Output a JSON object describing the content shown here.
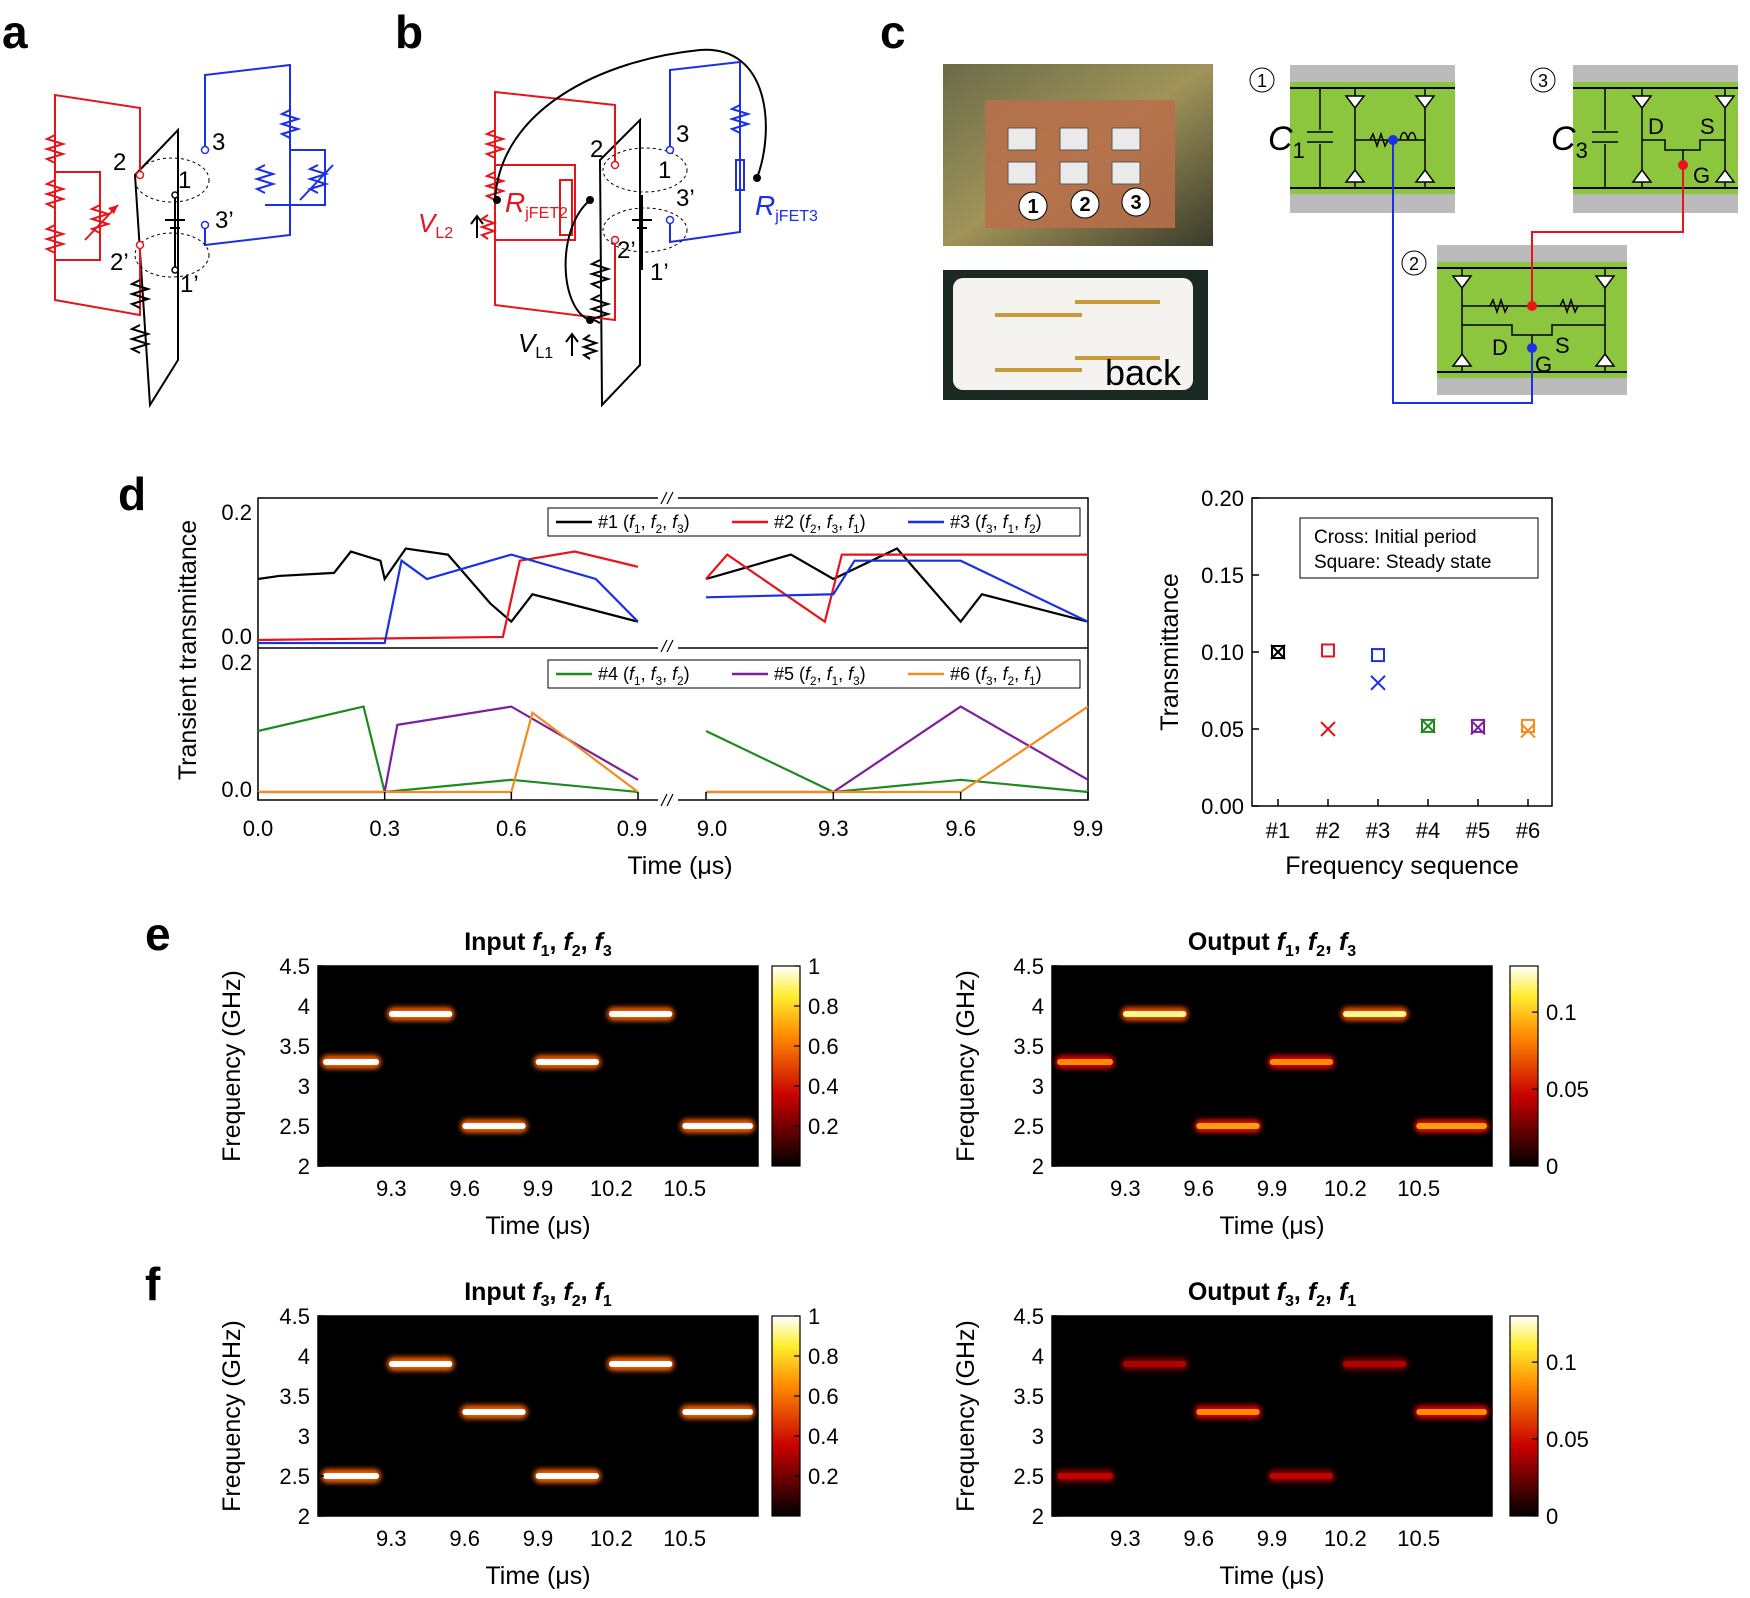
{
  "panel_labels": [
    "a",
    "b",
    "c",
    "d",
    "e",
    "f"
  ],
  "colors": {
    "red": "#e8141b",
    "blue": "#1a2fe6",
    "black": "#000000",
    "green": "#1f8a1f",
    "purple": "#7d1f9c",
    "orange": "#f28c1c",
    "board_green": "#8cc63f",
    "board_gray": "#bbbbbb"
  },
  "circuit_a": {
    "nodes": [
      "1",
      "1’",
      "2",
      "2’",
      "3",
      "3’"
    ]
  },
  "circuit_b": {
    "nodes": [
      "1",
      "1’",
      "2",
      "2’",
      "3",
      "3’"
    ],
    "vl2": {
      "main": "V",
      "sub": "L2"
    },
    "vl1": {
      "main": "V",
      "sub": "L1"
    },
    "rjfet2": {
      "main": "R",
      "sub": "jFET2"
    },
    "rjfet3": {
      "main": "R",
      "sub": "jFET3"
    }
  },
  "panel_c": {
    "photo_numbers": [
      "1",
      "2",
      "3"
    ],
    "back_label": "back",
    "module_numbers": [
      "1",
      "2",
      "3"
    ],
    "c1": {
      "main": "C",
      "sub": "1"
    },
    "c3": {
      "main": "C",
      "sub": "3"
    },
    "pins": {
      "d": "D",
      "s": "S",
      "g": "G"
    }
  },
  "chart_data": [
    {
      "id": "d_left",
      "type": "line",
      "ylabel": "Transient transmittance",
      "xlabel": "Time (μs)",
      "broken_axis": {
        "segment1": [
          0.0,
          0.9
        ],
        "segment2": [
          9.0,
          9.9
        ]
      },
      "xticks": [
        "0.0",
        "0.3",
        "0.6",
        "0.9",
        "9.0",
        "9.3",
        "9.6",
        "9.9"
      ],
      "yticks": [
        "0.0",
        "0.2"
      ],
      "ylim": [
        -0.01,
        0.22
      ],
      "top": {
        "legend": [
          {
            "id": "#1",
            "freqs": [
              "f1",
              "f2",
              "f3"
            ],
            "label": "#1 (f1, f2, f3)"
          },
          {
            "id": "#2",
            "freqs": [
              "f2",
              "f3",
              "f1"
            ],
            "label": "#2 (f2, f3, f1)"
          },
          {
            "id": "#3",
            "freqs": [
              "f3",
              "f1",
              "f2"
            ],
            "label": "#3 (f3, f1, f2)"
          }
        ],
        "series": [
          {
            "name": "#1 (f1, f2, f3)",
            "color": "#000000",
            "levels": [
              0.1,
              0.14,
              0.075
            ],
            "values": [
              [
                0.0,
                0.1
              ],
              [
                0.05,
                0.105
              ],
              [
                0.18,
                0.11
              ],
              [
                0.22,
                0.145
              ],
              [
                0.29,
                0.13
              ],
              [
                0.3,
                0.1
              ],
              [
                0.35,
                0.15
              ],
              [
                0.45,
                0.14
              ],
              [
                0.55,
                0.06
              ],
              [
                0.6,
                0.03
              ],
              [
                0.65,
                0.075
              ],
              [
                0.9,
                0.03
              ],
              [
                9.0,
                0.1
              ],
              [
                9.05,
                0.11
              ],
              [
                9.2,
                0.14
              ],
              [
                9.3,
                0.1
              ],
              [
                9.45,
                0.15
              ],
              [
                9.6,
                0.03
              ],
              [
                9.65,
                0.075
              ],
              [
                9.9,
                0.03
              ]
            ]
          },
          {
            "name": "#2 (f2, f3, f1)",
            "color": "#e8141b",
            "levels": [
              0.0,
              0.0,
              0.14
            ],
            "values": [
              [
                0.0,
                0.0
              ],
              [
                0.58,
                0.005
              ],
              [
                0.62,
                0.13
              ],
              [
                0.75,
                0.145
              ],
              [
                0.9,
                0.12
              ],
              [
                9.0,
                0.1
              ],
              [
                9.05,
                0.14
              ],
              [
                9.28,
                0.03
              ],
              [
                9.32,
                0.14
              ],
              [
                9.6,
                0.14
              ],
              [
                9.9,
                0.14
              ]
            ]
          },
          {
            "name": "#3 (f3, f1, f2)",
            "color": "#1a2fe6",
            "levels": [
              -0.005,
              0.1,
              0.14
            ],
            "values": [
              [
                0.0,
                -0.005
              ],
              [
                0.3,
                -0.005
              ],
              [
                0.34,
                0.13
              ],
              [
                0.4,
                0.1
              ],
              [
                0.6,
                0.14
              ],
              [
                0.8,
                0.1
              ],
              [
                0.9,
                0.03
              ],
              [
                9.0,
                0.07
              ],
              [
                9.3,
                0.075
              ],
              [
                9.35,
                0.13
              ],
              [
                9.6,
                0.13
              ],
              [
                9.9,
                0.03
              ]
            ]
          }
        ]
      },
      "bottom": {
        "legend": [
          {
            "id": "#4",
            "freqs": [
              "f1",
              "f3",
              "f2"
            ],
            "label": "#4 (f1, f3, f2)"
          },
          {
            "id": "#5",
            "freqs": [
              "f2",
              "f1",
              "f3"
            ],
            "label": "#5 (f2, f1, f3)"
          },
          {
            "id": "#6",
            "freqs": [
              "f3",
              "f2",
              "f1"
            ],
            "label": "#6 (f3, f2, f1)"
          }
        ],
        "series": [
          {
            "name": "#4 (f1, f3, f2)",
            "color": "#1f8a1f",
            "levels": [
              0.12,
              0.02,
              0.0
            ],
            "values": [
              [
                0.0,
                0.1
              ],
              [
                0.25,
                0.14
              ],
              [
                0.3,
                0.0
              ],
              [
                0.6,
                0.02
              ],
              [
                0.9,
                0.0
              ],
              [
                9.0,
                0.1
              ],
              [
                9.3,
                0.0
              ],
              [
                9.6,
                0.02
              ],
              [
                9.9,
                0.0
              ]
            ]
          },
          {
            "name": "#5 (f2, f1, f3)",
            "color": "#7d1f9c",
            "levels": [
              0.0,
              0.14,
              0.02
            ],
            "values": [
              [
                0.0,
                0.0
              ],
              [
                0.3,
                0.0
              ],
              [
                0.33,
                0.11
              ],
              [
                0.6,
                0.14
              ],
              [
                0.9,
                0.02
              ],
              [
                9.0,
                0.0
              ],
              [
                9.3,
                0.0
              ],
              [
                9.6,
                0.14
              ],
              [
                9.9,
                0.02
              ]
            ]
          },
          {
            "name": "#6 (f3, f2, f1)",
            "color": "#f28c1c",
            "levels": [
              0.0,
              0.0,
              0.14
            ],
            "values": [
              [
                0.0,
                0.0
              ],
              [
                0.6,
                0.0
              ],
              [
                0.65,
                0.13
              ],
              [
                0.9,
                0.0
              ],
              [
                9.0,
                0.0
              ],
              [
                9.3,
                0.0
              ],
              [
                9.6,
                0.0
              ],
              [
                9.9,
                0.14
              ]
            ]
          }
        ]
      }
    },
    {
      "id": "d_right",
      "type": "scatter",
      "xlabel": "Frequency sequence",
      "ylabel": "Transmittance",
      "categories": [
        "#1",
        "#2",
        "#3",
        "#4",
        "#5",
        "#6"
      ],
      "yticks": [
        "0.00",
        "0.05",
        "0.10",
        "0.15",
        "0.20"
      ],
      "ylim": [
        0.0,
        0.2
      ],
      "legend_lines": [
        "Cross: Initial period",
        "Square: Steady state"
      ],
      "series": [
        {
          "name": "Cross: Initial period",
          "marker": "cross",
          "values": [
            0.1,
            0.05,
            0.08,
            0.052,
            0.051,
            0.049
          ]
        },
        {
          "name": "Square: Steady state",
          "marker": "square",
          "values": [
            0.1,
            0.101,
            0.098,
            0.052,
            0.052,
            0.052
          ]
        }
      ],
      "colors": [
        "#000000",
        "#e8141b",
        "#1a2fe6",
        "#1f8a1f",
        "#7d1f9c",
        "#f28c1c"
      ]
    },
    {
      "id": "e_input",
      "type": "heatmap",
      "title": "Input f1, f2, f3",
      "title_freqs": [
        "f1",
        "f2",
        "f3"
      ],
      "title_word": "Input",
      "xlabel": "Time (μs)",
      "ylabel": "Frequency (GHz)",
      "xlim": [
        9.0,
        10.8
      ],
      "ylim": [
        2.0,
        4.5
      ],
      "xticks": [
        "9.3",
        "9.6",
        "9.9",
        "10.2",
        "10.5"
      ],
      "yticks": [
        "2",
        "2.5",
        "3",
        "3.5",
        "4",
        "4.5"
      ],
      "colorbar": {
        "max": 1.0,
        "ticks": [
          "0.2",
          "0.4",
          "0.6",
          "0.8",
          "1"
        ]
      },
      "pulses": [
        {
          "t0": 9.0,
          "t1": 9.27,
          "f": 3.3,
          "amp": 1.0
        },
        {
          "t0": 9.27,
          "t1": 9.57,
          "f": 3.9,
          "amp": 1.0
        },
        {
          "t0": 9.57,
          "t1": 9.87,
          "f": 2.5,
          "amp": 1.0
        },
        {
          "t0": 9.87,
          "t1": 10.17,
          "f": 3.3,
          "amp": 1.0
        },
        {
          "t0": 10.17,
          "t1": 10.47,
          "f": 3.9,
          "amp": 1.0
        },
        {
          "t0": 10.47,
          "t1": 10.8,
          "f": 2.5,
          "amp": 1.0
        }
      ]
    },
    {
      "id": "e_output",
      "type": "heatmap",
      "title": "Output f1, f2, f3",
      "title_freqs": [
        "f1",
        "f2",
        "f3"
      ],
      "title_word": "Output",
      "xlabel": "Time (μs)",
      "ylabel": "Frequency (GHz)",
      "xlim": [
        9.0,
        10.8
      ],
      "ylim": [
        2.0,
        4.5
      ],
      "xticks": [
        "9.3",
        "9.6",
        "9.9",
        "10.2",
        "10.5"
      ],
      "yticks": [
        "2",
        "2.5",
        "3",
        "3.5",
        "4",
        "4.5"
      ],
      "colorbar": {
        "max": 0.13,
        "ticks": [
          "0",
          "0.05",
          "0.1"
        ]
      },
      "pulses": [
        {
          "t0": 9.0,
          "t1": 9.27,
          "f": 3.3,
          "amp": 0.085
        },
        {
          "t0": 9.27,
          "t1": 9.57,
          "f": 3.9,
          "amp": 0.12
        },
        {
          "t0": 9.57,
          "t1": 9.87,
          "f": 2.5,
          "amp": 0.09
        },
        {
          "t0": 9.87,
          "t1": 10.17,
          "f": 3.3,
          "amp": 0.085
        },
        {
          "t0": 10.17,
          "t1": 10.47,
          "f": 3.9,
          "amp": 0.12
        },
        {
          "t0": 10.47,
          "t1": 10.8,
          "f": 2.5,
          "amp": 0.09
        }
      ]
    },
    {
      "id": "f_input",
      "type": "heatmap",
      "title": "Input f3, f2, f1",
      "title_freqs": [
        "f3",
        "f2",
        "f1"
      ],
      "title_word": "Input",
      "xlabel": "Time (μs)",
      "ylabel": "Frequency (GHz)",
      "xlim": [
        9.0,
        10.8
      ],
      "ylim": [
        2.0,
        4.5
      ],
      "xticks": [
        "9.3",
        "9.6",
        "9.9",
        "10.2",
        "10.5"
      ],
      "yticks": [
        "2",
        "2.5",
        "3",
        "3.5",
        "4",
        "4.5"
      ],
      "colorbar": {
        "max": 1.0,
        "ticks": [
          "0.2",
          "0.4",
          "0.6",
          "0.8",
          "1"
        ]
      },
      "pulses": [
        {
          "t0": 9.0,
          "t1": 9.27,
          "f": 2.5,
          "amp": 1.0
        },
        {
          "t0": 9.27,
          "t1": 9.57,
          "f": 3.9,
          "amp": 1.0
        },
        {
          "t0": 9.57,
          "t1": 9.87,
          "f": 3.3,
          "amp": 1.0
        },
        {
          "t0": 9.87,
          "t1": 10.17,
          "f": 2.5,
          "amp": 1.0
        },
        {
          "t0": 10.17,
          "t1": 10.47,
          "f": 3.9,
          "amp": 1.0
        },
        {
          "t0": 10.47,
          "t1": 10.8,
          "f": 3.3,
          "amp": 1.0
        }
      ]
    },
    {
      "id": "f_output",
      "type": "heatmap",
      "title": "Output f3, f2, f1",
      "title_freqs": [
        "f3",
        "f2",
        "f1"
      ],
      "title_word": "Output",
      "xlabel": "Time (μs)",
      "ylabel": "Frequency (GHz)",
      "xlim": [
        9.0,
        10.8
      ],
      "ylim": [
        2.0,
        4.5
      ],
      "xticks": [
        "9.3",
        "9.6",
        "9.9",
        "10.2",
        "10.5"
      ],
      "yticks": [
        "2",
        "2.5",
        "3",
        "3.5",
        "4",
        "4.5"
      ],
      "colorbar": {
        "max": 0.13,
        "ticks": [
          "0",
          "0.05",
          "0.1"
        ]
      },
      "pulses": [
        {
          "t0": 9.0,
          "t1": 9.27,
          "f": 2.5,
          "amp": 0.045
        },
        {
          "t0": 9.27,
          "t1": 9.57,
          "f": 3.9,
          "amp": 0.04
        },
        {
          "t0": 9.57,
          "t1": 9.87,
          "f": 3.3,
          "amp": 0.085
        },
        {
          "t0": 9.87,
          "t1": 10.17,
          "f": 2.5,
          "amp": 0.045
        },
        {
          "t0": 10.17,
          "t1": 10.47,
          "f": 3.9,
          "amp": 0.04
        },
        {
          "t0": 10.47,
          "t1": 10.8,
          "f": 3.3,
          "amp": 0.085
        }
      ]
    }
  ]
}
